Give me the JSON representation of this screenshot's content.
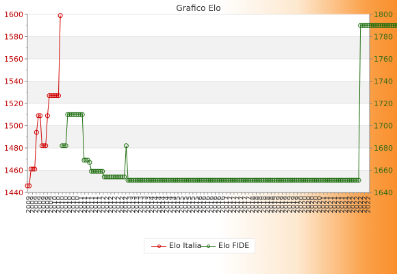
{
  "chart_data": {
    "type": "line",
    "title": "Grafico Elo",
    "left_axis": {
      "min": 1440,
      "max": 1600,
      "ticks": [
        1440,
        1460,
        1480,
        1500,
        1520,
        1540,
        1560,
        1580,
        1600
      ]
    },
    "right_axis": {
      "min": 1640,
      "max": 1800,
      "ticks": [
        1640,
        1660,
        1680,
        1700,
        1720,
        1740,
        1760,
        1780,
        1800
      ]
    },
    "x_tick_labels": [
      "2009",
      "2010",
      "2011",
      "2012",
      "2013",
      "2014",
      "2015",
      "2016",
      "2017",
      "2018",
      "2019",
      "2020",
      "2021",
      "2022"
    ],
    "series": [
      {
        "name": "Elo Italia",
        "axis": "left",
        "color": "#d00000",
        "values": [
          1446,
          1446,
          1461,
          1461,
          1461,
          1494,
          1509,
          1509,
          1482,
          1482,
          1482,
          1509,
          1527,
          1527,
          1527,
          1527,
          1527,
          1527,
          1599
        ]
      },
      {
        "name": "Elo FIDE",
        "axis": "right",
        "color": "#1f6e10",
        "values": [
          1682,
          1682,
          1682,
          1710,
          1710,
          1710,
          1710,
          1710,
          1710,
          1710,
          1710,
          1710,
          1669,
          1669,
          1669,
          1667,
          1659,
          1659,
          1659,
          1659,
          1659,
          1659,
          1659,
          1654,
          1654,
          1654,
          1654,
          1654,
          1654,
          1654,
          1654,
          1654,
          1654,
          1654,
          1654,
          1682,
          1651,
          1651,
          1651,
          1651,
          1651,
          1651,
          1651,
          1651,
          1651,
          1651,
          1651,
          1651,
          1651,
          1651,
          1651,
          1651,
          1651,
          1651,
          1651,
          1651,
          1651,
          1651,
          1651,
          1651,
          1651,
          1651,
          1651,
          1651,
          1651,
          1651,
          1651,
          1651,
          1651,
          1651,
          1651,
          1651,
          1651,
          1651,
          1651,
          1651,
          1651,
          1651,
          1651,
          1651,
          1651,
          1651,
          1651,
          1651,
          1651,
          1651,
          1651,
          1651,
          1651,
          1651,
          1651,
          1651,
          1651,
          1651,
          1651,
          1651,
          1651,
          1651,
          1651,
          1651,
          1651,
          1651,
          1651,
          1651,
          1651,
          1651,
          1651,
          1651,
          1651,
          1651,
          1651,
          1651,
          1651,
          1651,
          1651,
          1651,
          1651,
          1651,
          1651,
          1651,
          1651,
          1651,
          1651,
          1651,
          1651,
          1651,
          1651,
          1651,
          1651,
          1651,
          1651,
          1651,
          1651,
          1651,
          1651,
          1651,
          1651,
          1651,
          1651,
          1651,
          1651,
          1651,
          1651,
          1651,
          1651,
          1651,
          1651,
          1651,
          1651,
          1651,
          1651,
          1651,
          1651,
          1651,
          1651,
          1651,
          1651,
          1651,
          1651,
          1651,
          1651,
          1651,
          1651,
          1790,
          1790,
          1790,
          1790,
          1790,
          1790,
          1790,
          1790,
          1790,
          1790,
          1790,
          1790,
          1790,
          1790,
          1790,
          1790,
          1790,
          1790,
          1790,
          1790,
          1790,
          1790,
          1790,
          1790,
          1790
        ]
      }
    ],
    "grid": true,
    "legend_position": "bottom-center"
  }
}
